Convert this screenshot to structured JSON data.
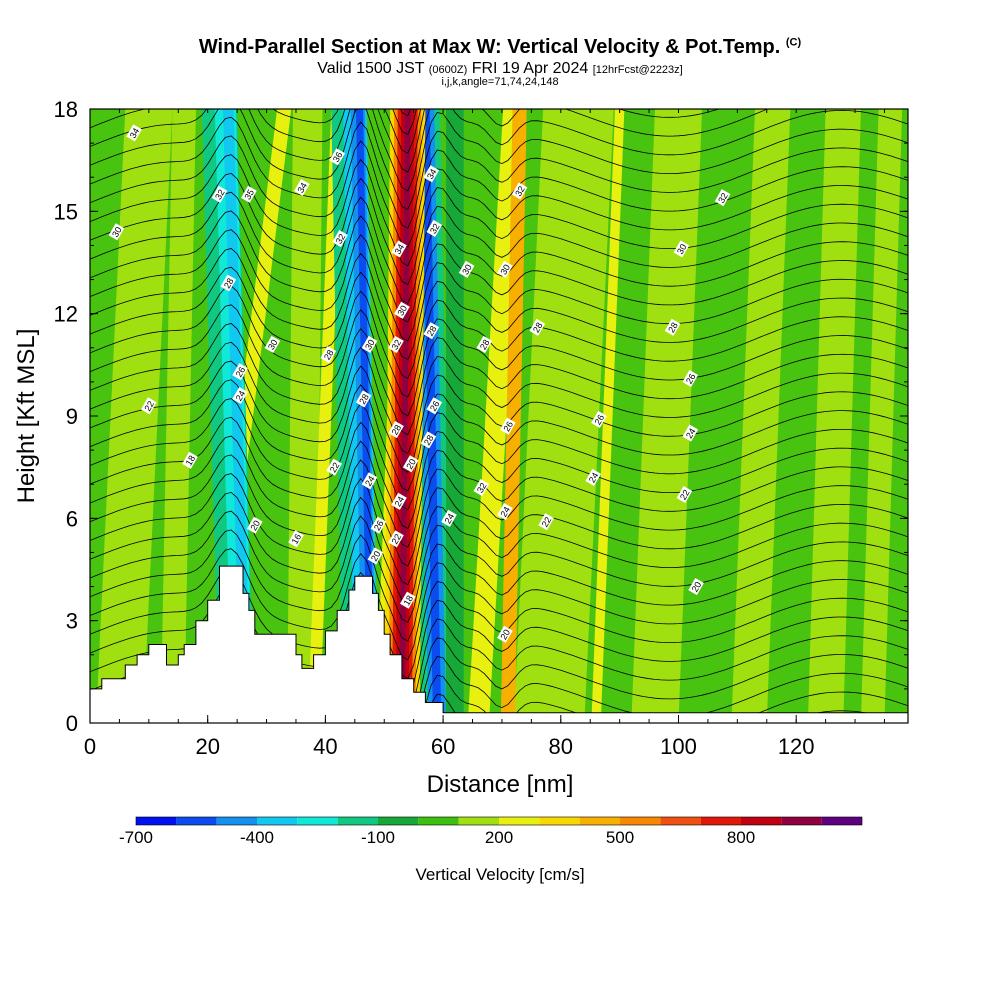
{
  "title": {
    "main": "Wind-Parallel Section at Max W: Vertical Velocity & Pot.Temp.",
    "copyright": "(C)",
    "valid_prefix": "Valid 1500 JST",
    "valid_utc": "(0600Z)",
    "valid_day": "FRI 19 Apr 2024",
    "forecast": "[12hrFcst@2223z]",
    "grid": "i,j,k,angle=71,74,24,148"
  },
  "chart_data": {
    "type": "heatmap",
    "xlabel": "Distance [nm]",
    "ylabel": "Height [Kft MSL]",
    "xlim": [
      0,
      139
    ],
    "ylim": [
      0,
      18
    ],
    "x_ticks": [
      "0",
      "20",
      "40",
      "60",
      "80",
      "100",
      "120"
    ],
    "y_ticks": [
      "0",
      "3",
      "6",
      "9",
      "12",
      "15",
      "18"
    ],
    "colorbar": {
      "label": "Vertical Velocity [cm/s]",
      "tick_labels": [
        "-700",
        "-400",
        "-100",
        "200",
        "500",
        "800"
      ],
      "colors": [
        "#0010f0",
        "#0a4cf0",
        "#1490f0",
        "#10c8f0",
        "#10e8d8",
        "#10c880",
        "#18a838",
        "#3cc010",
        "#a0e010",
        "#e8f010",
        "#f8d800",
        "#f8b000",
        "#f88800",
        "#f05010",
        "#e01808",
        "#c00010",
        "#900040",
        "#600080"
      ]
    },
    "terrain": [
      [
        0,
        1
      ],
      [
        2,
        1
      ],
      [
        2,
        1.3
      ],
      [
        6,
        1.3
      ],
      [
        6,
        1.7
      ],
      [
        8,
        1.7
      ],
      [
        8,
        2
      ],
      [
        10,
        2
      ],
      [
        10,
        2.3
      ],
      [
        13,
        2.3
      ],
      [
        13,
        1.7
      ],
      [
        15,
        1.7
      ],
      [
        15,
        2
      ],
      [
        16,
        2
      ],
      [
        16,
        2.3
      ],
      [
        18,
        2.3
      ],
      [
        18,
        3
      ],
      [
        20,
        3
      ],
      [
        20,
        3.6
      ],
      [
        22,
        3.6
      ],
      [
        22,
        4.6
      ],
      [
        26,
        4.6
      ],
      [
        26,
        3.8
      ],
      [
        27,
        3.8
      ],
      [
        27,
        3.3
      ],
      [
        28,
        3.3
      ],
      [
        28,
        2.6
      ],
      [
        35,
        2.6
      ],
      [
        35,
        2
      ],
      [
        36,
        2
      ],
      [
        36,
        1.6
      ],
      [
        38,
        1.6
      ],
      [
        38,
        2
      ],
      [
        40,
        2
      ],
      [
        40,
        2.7
      ],
      [
        42,
        2.7
      ],
      [
        42,
        3.3
      ],
      [
        44,
        3.3
      ],
      [
        44,
        3.9
      ],
      [
        45,
        3.9
      ],
      [
        45,
        4.3
      ],
      [
        48,
        4.3
      ],
      [
        48,
        3.8
      ],
      [
        49,
        3.8
      ],
      [
        49,
        3.3
      ],
      [
        50,
        3.3
      ],
      [
        50,
        2.6
      ],
      [
        51,
        2.6
      ],
      [
        51,
        2
      ],
      [
        53,
        2
      ],
      [
        53,
        1.3
      ],
      [
        55,
        1.3
      ],
      [
        55,
        0.9
      ],
      [
        57,
        0.9
      ],
      [
        57,
        0.6
      ],
      [
        60,
        0.6
      ],
      [
        60,
        0.3
      ],
      [
        139,
        0.3
      ],
      [
        139,
        0
      ],
      [
        0,
        0
      ]
    ],
    "theta_labels": [
      {
        "x": 7.5,
        "y": 17.3,
        "v": "34"
      },
      {
        "x": 4.5,
        "y": 14.4,
        "v": "30"
      },
      {
        "x": 22,
        "y": 15.5,
        "v": "32"
      },
      {
        "x": 27,
        "y": 15.5,
        "v": "35"
      },
      {
        "x": 36,
        "y": 15.7,
        "v": "34"
      },
      {
        "x": 42,
        "y": 16.6,
        "v": "36"
      },
      {
        "x": 42.5,
        "y": 14.2,
        "v": "32"
      },
      {
        "x": 23.5,
        "y": 12.9,
        "v": "28"
      },
      {
        "x": 31,
        "y": 11.1,
        "v": "30"
      },
      {
        "x": 25.5,
        "y": 10.3,
        "v": "26"
      },
      {
        "x": 25.5,
        "y": 9.6,
        "v": "24"
      },
      {
        "x": 40.5,
        "y": 10.8,
        "v": "28"
      },
      {
        "x": 10,
        "y": 9.3,
        "v": "22"
      },
      {
        "x": 17,
        "y": 7.7,
        "v": "18"
      },
      {
        "x": 28,
        "y": 5.8,
        "v": "20"
      },
      {
        "x": 35,
        "y": 5.4,
        "v": "16"
      },
      {
        "x": 41.5,
        "y": 7.5,
        "v": "22"
      },
      {
        "x": 47.5,
        "y": 11.1,
        "v": "30"
      },
      {
        "x": 46.5,
        "y": 9.5,
        "v": "28"
      },
      {
        "x": 47.5,
        "y": 7.1,
        "v": "24"
      },
      {
        "x": 49,
        "y": 5.8,
        "v": "26"
      },
      {
        "x": 48.5,
        "y": 4.9,
        "v": "20"
      },
      {
        "x": 52.5,
        "y": 13.9,
        "v": "34"
      },
      {
        "x": 53,
        "y": 12.1,
        "v": "30"
      },
      {
        "x": 52,
        "y": 11.1,
        "v": "32"
      },
      {
        "x": 52,
        "y": 8.6,
        "v": "28"
      },
      {
        "x": 52.5,
        "y": 6.5,
        "v": "24"
      },
      {
        "x": 52,
        "y": 5.4,
        "v": "22"
      },
      {
        "x": 54,
        "y": 3.6,
        "v": "18"
      },
      {
        "x": 54.5,
        "y": 7.6,
        "v": "20"
      },
      {
        "x": 58,
        "y": 16.1,
        "v": "34"
      },
      {
        "x": 58.5,
        "y": 14.5,
        "v": "32"
      },
      {
        "x": 58,
        "y": 11.5,
        "v": "28"
      },
      {
        "x": 58.5,
        "y": 9.3,
        "v": "26"
      },
      {
        "x": 57.5,
        "y": 8.3,
        "v": "28"
      },
      {
        "x": 61,
        "y": 6,
        "v": "24"
      },
      {
        "x": 64,
        "y": 13.3,
        "v": "30"
      },
      {
        "x": 67,
        "y": 11.1,
        "v": "28"
      },
      {
        "x": 66.5,
        "y": 6.9,
        "v": "32"
      },
      {
        "x": 70.5,
        "y": 13.3,
        "v": "30"
      },
      {
        "x": 73,
        "y": 15.6,
        "v": "32"
      },
      {
        "x": 76,
        "y": 11.6,
        "v": "28"
      },
      {
        "x": 71,
        "y": 8.7,
        "v": "26"
      },
      {
        "x": 70.5,
        "y": 6.2,
        "v": "24"
      },
      {
        "x": 70.5,
        "y": 2.6,
        "v": "20"
      },
      {
        "x": 77.5,
        "y": 5.9,
        "v": "22"
      },
      {
        "x": 86.5,
        "y": 8.9,
        "v": "26"
      },
      {
        "x": 85.5,
        "y": 7.2,
        "v": "24"
      },
      {
        "x": 100.5,
        "y": 13.9,
        "v": "30"
      },
      {
        "x": 99,
        "y": 11.6,
        "v": "28"
      },
      {
        "x": 102,
        "y": 10.1,
        "v": "26"
      },
      {
        "x": 102,
        "y": 8.5,
        "v": "24"
      },
      {
        "x": 101,
        "y": 6.7,
        "v": "22"
      },
      {
        "x": 103,
        "y": 4,
        "v": "20"
      },
      {
        "x": 107.5,
        "y": 15.4,
        "v": "32"
      }
    ]
  }
}
